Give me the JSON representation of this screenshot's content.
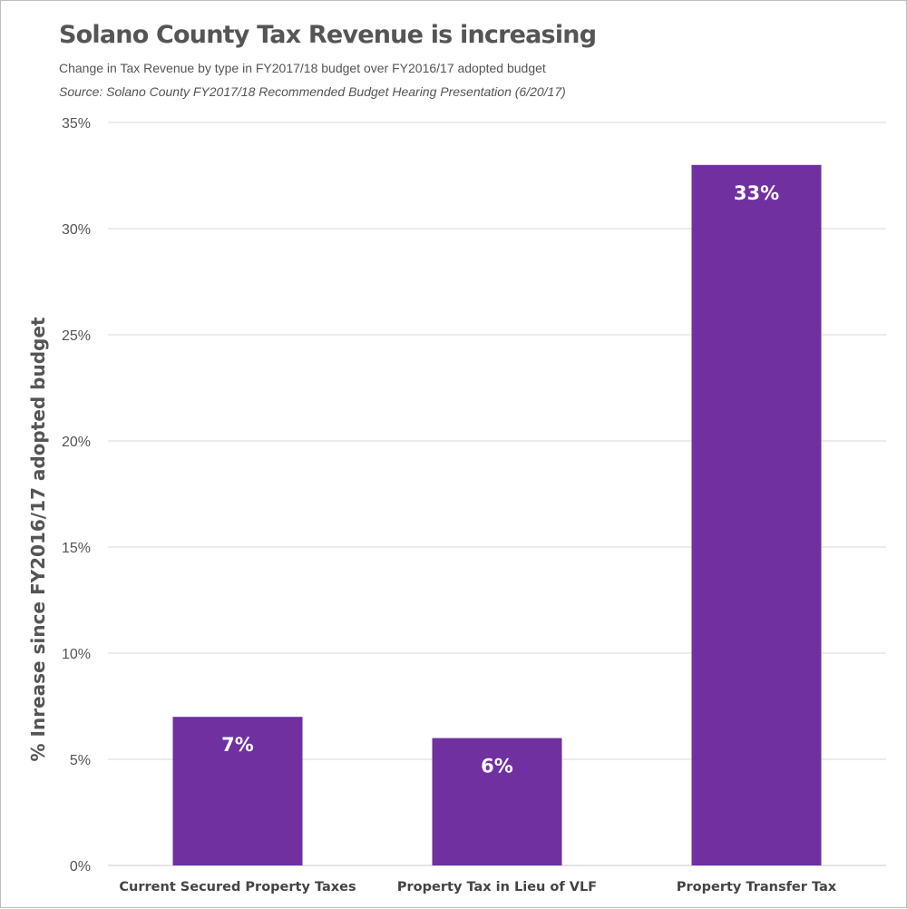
{
  "chart_data": {
    "type": "bar",
    "title": "Solano County Tax Revenue is increasing",
    "subtitle": "Change in Tax Revenue by type in FY2017/18 budget  over FY2016/17 adopted budget",
    "source": "Source: Solano County FY2017/18 Recommended Budget Hearing Presentation (6/20/17)",
    "xlabel": "",
    "ylabel": "% Inrease since FY2016/17 adopted budget",
    "categories": [
      "Current Secured Property Taxes",
      "Property Tax in Lieu of VLF",
      "Property Transfer Tax"
    ],
    "values": [
      7,
      6,
      33
    ],
    "data_labels": [
      "7%",
      "6%",
      "33%"
    ],
    "ylim": [
      0,
      35
    ],
    "yticks": [
      0,
      5,
      10,
      15,
      20,
      25,
      30,
      35
    ],
    "ytick_labels": [
      "0%",
      "5%",
      "10%",
      "15%",
      "20%",
      "25%",
      "30%",
      "35%"
    ],
    "grid": true,
    "legend": "none",
    "bar_color": "#7030a0",
    "grid_color": "#d9d9d9",
    "text_color": "#555555"
  }
}
